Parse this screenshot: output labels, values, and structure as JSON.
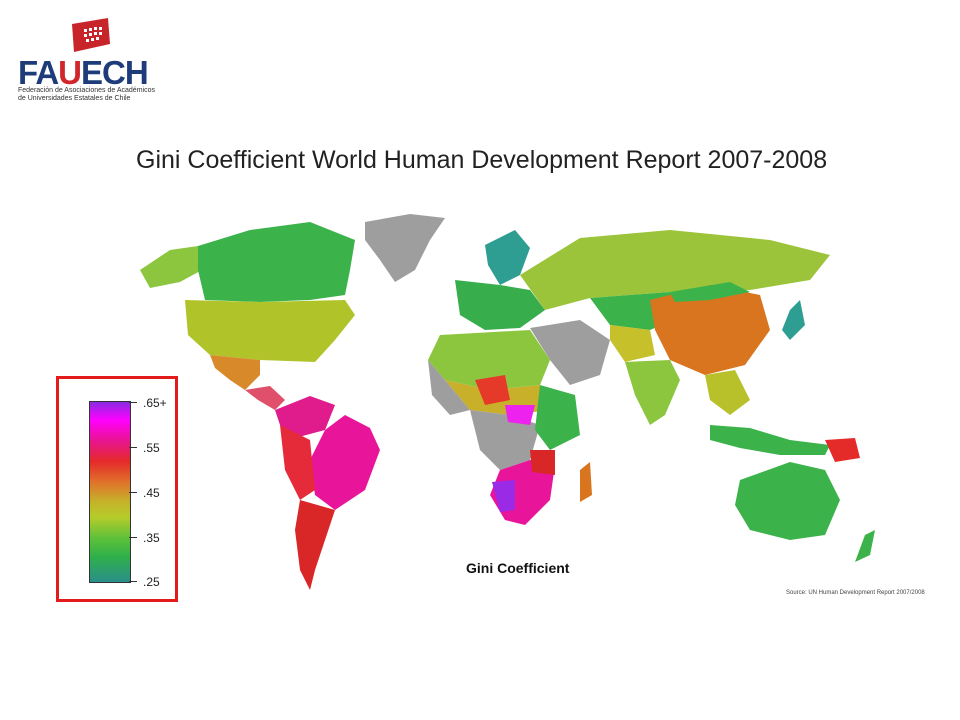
{
  "logo": {
    "name_part1": "FA",
    "name_part2": "U",
    "name_part3": "ECH",
    "subtitle_line1": "Federación de Asociaciones de Académicos",
    "subtitle_line2": "de Universidades Estatales de Chile",
    "accent_color": "#d0262c",
    "brand_color": "#1f3c7a"
  },
  "title": "Gini Coefficient World Human Development Report 2007-2008",
  "map_caption": "Gini Coefficient",
  "source": "Source: UN Human Development Report 2007/2008",
  "legend": {
    "ticks": [
      ".65+",
      ".55",
      ".45",
      ".35",
      ".25"
    ],
    "highlight_color": "#e31b1b"
  }
}
